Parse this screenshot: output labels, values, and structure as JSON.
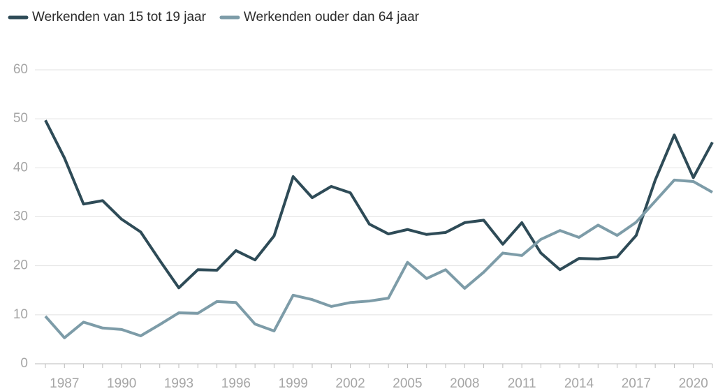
{
  "chart_data": {
    "type": "line",
    "x": [
      1986,
      1987,
      1988,
      1989,
      1990,
      1991,
      1992,
      1993,
      1994,
      1995,
      1996,
      1997,
      1998,
      1999,
      2000,
      2001,
      2002,
      2003,
      2004,
      2005,
      2006,
      2007,
      2008,
      2009,
      2010,
      2011,
      2012,
      2013,
      2014,
      2015,
      2016,
      2017,
      2018,
      2019,
      2020,
      2021
    ],
    "series": [
      {
        "name": "Werkenden van 15 tot 19 jaar",
        "color": "#2e4b57",
        "values": [
          49.7,
          42,
          32.6,
          33.3,
          29.5,
          26.9,
          21.1,
          15.5,
          19.2,
          19.1,
          23.1,
          21.2,
          26.1,
          38.2,
          33.9,
          36.2,
          34.9,
          28.5,
          26.5,
          27.4,
          26.4,
          26.8,
          28.8,
          29.3,
          24.4,
          28.8,
          22.6,
          19.2,
          21.5,
          21.4,
          21.8,
          26.2,
          37.5,
          46.7,
          38,
          45.2
        ]
      },
      {
        "name": "Werkenden ouder dan 64 jaar",
        "color": "#7d9ca8",
        "values": [
          9.7,
          5.3,
          8.5,
          7.3,
          7,
          5.7,
          8,
          10.4,
          10.3,
          12.7,
          12.5,
          8.1,
          6.7,
          14,
          13.1,
          11.7,
          12.5,
          12.8,
          13.4,
          20.7,
          17.4,
          19.2,
          15.4,
          18.7,
          22.6,
          22.1,
          25.4,
          27.2,
          25.8,
          28.3,
          26.2,
          28.9,
          33.2,
          37.5,
          37.2,
          35
        ]
      }
    ],
    "xlim": [
      1986,
      2021
    ],
    "xticks": [
      1987,
      1990,
      1993,
      1996,
      1999,
      2002,
      2005,
      2008,
      2011,
      2014,
      2017,
      2020
    ],
    "ylim": [
      0,
      60
    ],
    "yticks": [
      0,
      10,
      20,
      30,
      40,
      50,
      60
    ],
    "grid": true,
    "legend": "top-left"
  }
}
